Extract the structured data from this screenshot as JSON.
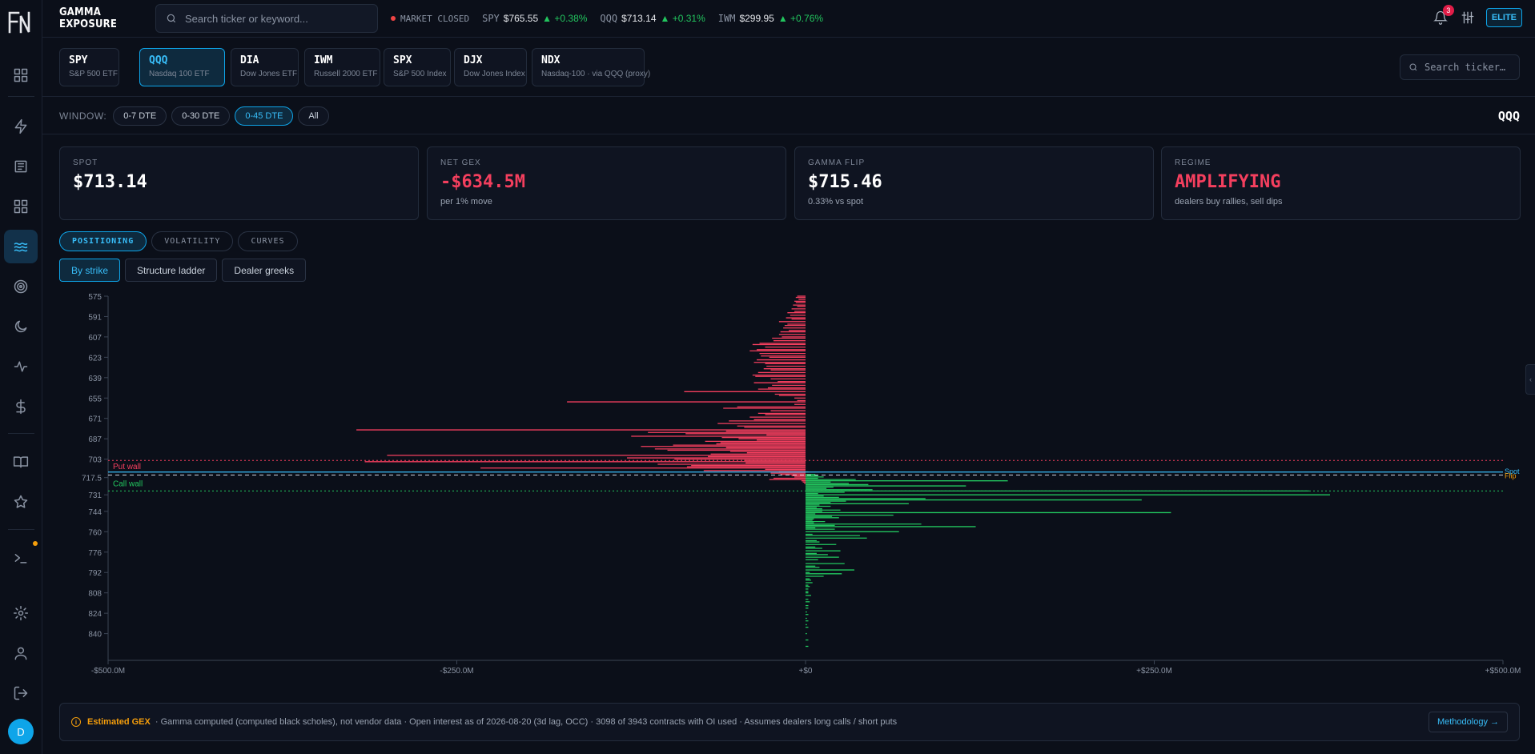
{
  "app": {
    "title": "GAMMA EXPOSURE"
  },
  "search": {
    "placeholder": "Search ticker or keyword..."
  },
  "market": {
    "status": "MARKET CLOSED",
    "tickers": [
      {
        "symbol": "SPY",
        "price": "$765.55",
        "change": "▲ +0.38%"
      },
      {
        "symbol": "QQQ",
        "price": "$713.14",
        "change": "▲ +0.31%"
      },
      {
        "symbol": "IWM",
        "price": "$299.95",
        "change": "▲ +0.76%"
      }
    ]
  },
  "header": {
    "notifications": "3",
    "plan": "ELITE"
  },
  "sidebar": {
    "avatar": "D"
  },
  "tickers": [
    {
      "symbol": "SPY",
      "name": "S&P 500 ETF"
    },
    {
      "symbol": "QQQ",
      "name": "Nasdaq 100 ETF"
    },
    {
      "symbol": "DIA",
      "name": "Dow Jones ETF"
    },
    {
      "symbol": "IWM",
      "name": "Russell 2000 ETF"
    },
    {
      "symbol": "SPX",
      "name": "S&P 500 Index"
    },
    {
      "symbol": "DJX",
      "name": "Dow Jones Index"
    },
    {
      "symbol": "NDX",
      "name": "Nasdaq-100 · via QQQ (proxy)"
    }
  ],
  "ticker_search": {
    "placeholder": "Search ticker…"
  },
  "window": {
    "label": "WINDOW:",
    "options": [
      "0-7 DTE",
      "0-30 DTE",
      "0-45 DTE",
      "All"
    ],
    "selected": "0-45 DTE",
    "symbol": "QQQ"
  },
  "stats": [
    {
      "label": "SPOT",
      "value": "$713.14",
      "sub": ""
    },
    {
      "label": "NET GEX",
      "value": "-$634.5M",
      "sub": "per 1% move"
    },
    {
      "label": "GAMMA FLIP",
      "value": "$715.46",
      "sub": "0.33% vs spot"
    },
    {
      "label": "REGIME",
      "value": "AMPLIFYING",
      "sub": "dealers buy rallies, sell dips"
    }
  ],
  "tabs": [
    "POSITIONING",
    "VOLATILITY",
    "CURVES"
  ],
  "subtabs": [
    "By strike",
    "Structure ladder",
    "Dealer greeks"
  ],
  "colors": {
    "accent": "#38bdf8",
    "put": "#f43f5e",
    "call": "#22c55e",
    "flip": "#f59e0b"
  },
  "chart_data": {
    "type": "bar",
    "orientation": "horizontal",
    "y_ticks": [
      "575",
      "591",
      "607",
      "623",
      "639",
      "655",
      "671",
      "687",
      "703",
      "717.5",
      "731",
      "744",
      "760",
      "776",
      "792",
      "808",
      "824",
      "840"
    ],
    "x_ticks": [
      "-$500.0M",
      "-$250.0M",
      "+$0",
      "+$250.0M",
      "+$500.0M"
    ],
    "xlim": [
      -500,
      500
    ],
    "ylim": [
      575,
      861
    ],
    "units": "$M",
    "annotations": {
      "put_wall": {
        "label": "Put wall",
        "strike": 704
      },
      "call_wall": {
        "label": "Call wall",
        "strike": 728
      },
      "spot": {
        "label": "Spot",
        "strike": 713.14
      },
      "flip": {
        "label": "Flip",
        "strike": 715.46
      }
    },
    "puts": [
      [
        575,
        -6
      ],
      [
        576,
        -7
      ],
      [
        577.5,
        -5
      ],
      [
        579,
        -8
      ],
      [
        580,
        -7
      ],
      [
        582,
        -9
      ],
      [
        583,
        -6
      ],
      [
        585,
        -10
      ],
      [
        587,
        -8
      ],
      [
        588,
        -13
      ],
      [
        590,
        -11
      ],
      [
        592,
        -14
      ],
      [
        593,
        -10
      ],
      [
        595,
        -19
      ],
      [
        597,
        -13
      ],
      [
        598,
        -15
      ],
      [
        600,
        -16
      ],
      [
        602,
        -12
      ],
      [
        603,
        -18
      ],
      [
        605,
        -19
      ],
      [
        607,
        -17
      ],
      [
        608,
        -24
      ],
      [
        610,
        -23
      ],
      [
        612,
        -33
      ],
      [
        613,
        -38
      ],
      [
        615,
        -29
      ],
      [
        617,
        -35
      ],
      [
        618,
        -40
      ],
      [
        620,
        -33
      ],
      [
        622,
        -32
      ],
      [
        623,
        -26
      ],
      [
        625,
        -35
      ],
      [
        627,
        -37
      ],
      [
        628,
        -29
      ],
      [
        630,
        -28
      ],
      [
        632,
        -30
      ],
      [
        633,
        -25
      ],
      [
        635,
        -34
      ],
      [
        637,
        -38
      ],
      [
        638,
        -36
      ],
      [
        640,
        -25
      ],
      [
        642,
        -20
      ],
      [
        643,
        -37
      ],
      [
        645,
        -24
      ],
      [
        647,
        -27
      ],
      [
        648,
        -34
      ],
      [
        650,
        -87
      ],
      [
        652,
        -22
      ],
      [
        653,
        -19
      ],
      [
        655,
        -8
      ],
      [
        657,
        -6
      ],
      [
        658,
        -171
      ],
      [
        660,
        -8
      ],
      [
        662,
        -49
      ],
      [
        663,
        -59
      ],
      [
        665,
        -25
      ],
      [
        667,
        -34
      ],
      [
        668,
        -29
      ],
      [
        670,
        -40
      ],
      [
        672,
        -37
      ],
      [
        673,
        -55
      ],
      [
        675,
        -63
      ],
      [
        677,
        -49
      ],
      [
        678,
        -44
      ],
      [
        680,
        -322
      ],
      [
        681,
        -57
      ],
      [
        682,
        -113
      ],
      [
        683,
        -86
      ],
      [
        684,
        -28
      ],
      [
        685,
        -125
      ],
      [
        686,
        -60
      ],
      [
        687,
        -48
      ],
      [
        688,
        -35
      ],
      [
        689,
        -72
      ],
      [
        690,
        -61
      ],
      [
        691,
        -64
      ],
      [
        692,
        -95
      ],
      [
        693,
        -118
      ],
      [
        694,
        -57
      ],
      [
        695,
        -108
      ],
      [
        696,
        -99
      ],
      [
        697,
        -54
      ],
      [
        698,
        -42
      ],
      [
        699,
        -68
      ],
      [
        700,
        -300
      ],
      [
        701,
        -70
      ],
      [
        702,
        -128
      ],
      [
        703,
        -94
      ],
      [
        704,
        -44
      ],
      [
        705,
        -316
      ],
      [
        706,
        -43
      ],
      [
        707,
        -106
      ],
      [
        708,
        -82
      ],
      [
        709,
        -85
      ],
      [
        710,
        -233
      ],
      [
        711,
        -29
      ],
      [
        712,
        -73
      ],
      [
        713,
        -19
      ],
      [
        714,
        -25
      ],
      [
        715,
        -18
      ],
      [
        716,
        -10
      ],
      [
        717,
        -8
      ],
      [
        718,
        -23
      ],
      [
        719,
        -26
      ],
      [
        720,
        -3
      ],
      [
        721,
        -2
      ],
      [
        722,
        -1
      ]
    ],
    "calls": [
      [
        713,
        2
      ],
      [
        715,
        7
      ],
      [
        716,
        9
      ],
      [
        717,
        13
      ],
      [
        718,
        9
      ],
      [
        719,
        36
      ],
      [
        720,
        145
      ],
      [
        721,
        18
      ],
      [
        722,
        31
      ],
      [
        723,
        45
      ],
      [
        724,
        115
      ],
      [
        725,
        20
      ],
      [
        726,
        15
      ],
      [
        727,
        48
      ],
      [
        728,
        361
      ],
      [
        729,
        28
      ],
      [
        730,
        9
      ],
      [
        731,
        376
      ],
      [
        732,
        13
      ],
      [
        733,
        24
      ],
      [
        734,
        86
      ],
      [
        735,
        241
      ],
      [
        736,
        29
      ],
      [
        737,
        18
      ],
      [
        738,
        74
      ],
      [
        739,
        10
      ],
      [
        740,
        18
      ],
      [
        741,
        8
      ],
      [
        742,
        12
      ],
      [
        743,
        25
      ],
      [
        744,
        12
      ],
      [
        745,
        262
      ],
      [
        746,
        7
      ],
      [
        747,
        63
      ],
      [
        748,
        19
      ],
      [
        749,
        24
      ],
      [
        750,
        6
      ],
      [
        751,
        5
      ],
      [
        752,
        14
      ],
      [
        753,
        6
      ],
      [
        754,
        83
      ],
      [
        755,
        21
      ],
      [
        756,
        122
      ],
      [
        757,
        7
      ],
      [
        758,
        21
      ],
      [
        760,
        67
      ],
      [
        762,
        5
      ],
      [
        763,
        39
      ],
      [
        765,
        44
      ],
      [
        767,
        8
      ],
      [
        768,
        10
      ],
      [
        770,
        22
      ],
      [
        772,
        7
      ],
      [
        773,
        12
      ],
      [
        775,
        25
      ],
      [
        777,
        8
      ],
      [
        778,
        16
      ],
      [
        780,
        24
      ],
      [
        782,
        9
      ],
      [
        785,
        28
      ],
      [
        787,
        7
      ],
      [
        788,
        10
      ],
      [
        790,
        35
      ],
      [
        792,
        3
      ],
      [
        793,
        26
      ],
      [
        795,
        13
      ],
      [
        797,
        3
      ],
      [
        798,
        4
      ],
      [
        800,
        5
      ],
      [
        802,
        2
      ],
      [
        803,
        3
      ],
      [
        805,
        2
      ],
      [
        807,
        2
      ],
      [
        808,
        2
      ],
      [
        810,
        4
      ],
      [
        813,
        2
      ],
      [
        815,
        3
      ],
      [
        818,
        2
      ],
      [
        820,
        2
      ],
      [
        823,
        1
      ],
      [
        825,
        2
      ],
      [
        828,
        1
      ],
      [
        830,
        2
      ],
      [
        833,
        1
      ],
      [
        835,
        2
      ],
      [
        840,
        1
      ],
      [
        845,
        2
      ],
      [
        850,
        2
      ]
    ]
  },
  "footer": {
    "estimated": "Estimated GEX",
    "text": "· Gamma computed (computed black scholes), not vendor data · Open interest as of 2026-08-20 (3d lag, OCC) · 3098 of 3943 contracts with OI used · Assumes dealers long calls / short puts",
    "methodology": "Methodology →"
  }
}
